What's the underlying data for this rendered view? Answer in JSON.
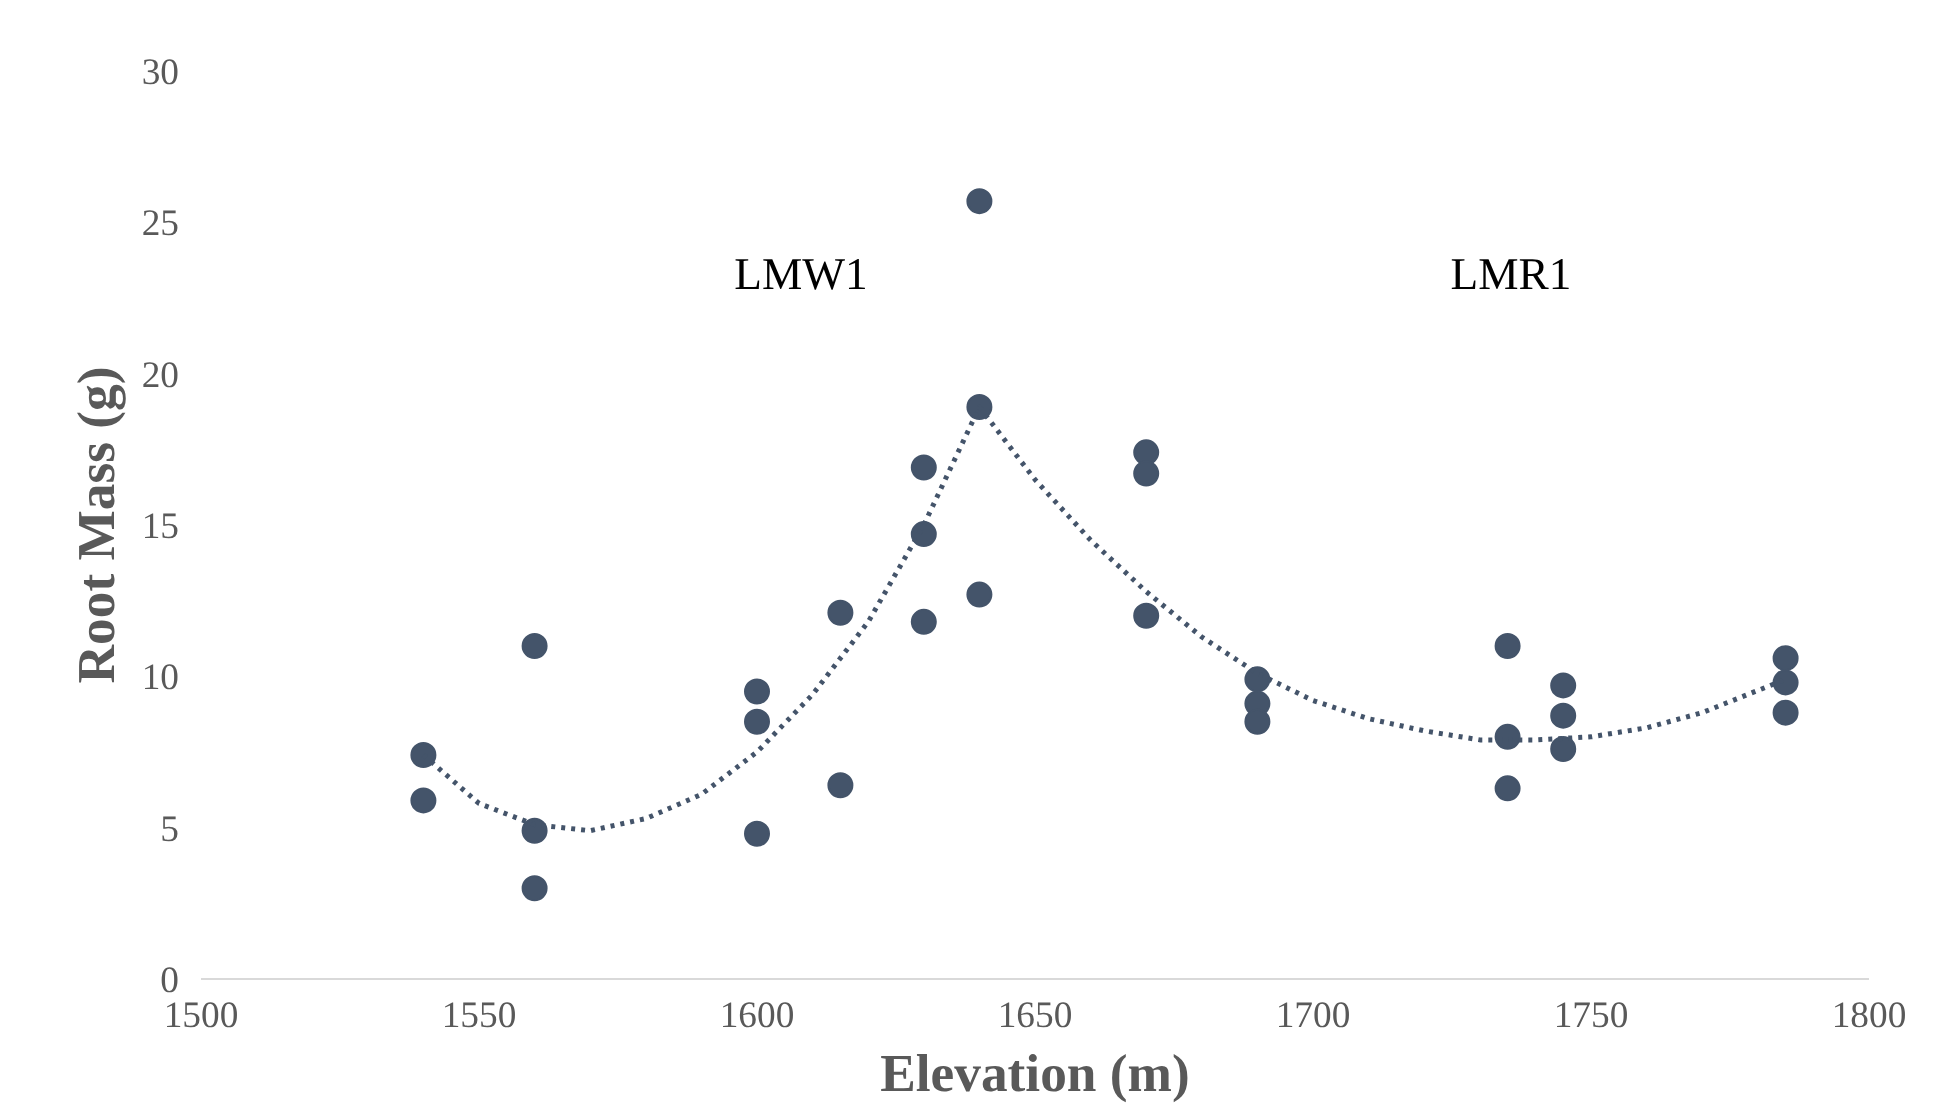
{
  "chart_data": {
    "type": "scatter",
    "xlabel": "Elevation (m)",
    "ylabel": "Root Mass (g)",
    "xlim": [
      1500,
      1800
    ],
    "xticks": [
      1500,
      1550,
      1600,
      1650,
      1700,
      1750,
      1800
    ],
    "ylim": [
      0,
      30
    ],
    "yticks": [
      0,
      5,
      10,
      15,
      20,
      25,
      30
    ],
    "grid": false,
    "marker": "circle",
    "series": [
      {
        "color": "#44546a",
        "x": [
          1540,
          1540,
          1560,
          1560,
          1560,
          1600,
          1600,
          1600,
          1615,
          1615,
          1630,
          1630,
          1630,
          1640,
          1640,
          1640,
          1670,
          1670,
          1670,
          1690,
          1690,
          1690,
          1735,
          1735,
          1735,
          1745,
          1745,
          1745,
          1785,
          1785,
          1785
        ],
        "values": [
          7.4,
          5.9,
          11.0,
          4.9,
          3.0,
          9.5,
          8.5,
          4.8,
          12.1,
          6.4,
          16.9,
          14.7,
          11.8,
          25.7,
          18.9,
          12.7,
          17.4,
          16.7,
          12.0,
          9.9,
          9.1,
          8.5,
          11.0,
          8.0,
          6.3,
          9.7,
          8.7,
          7.6,
          10.6,
          9.8,
          8.8
        ]
      },
      {
        "type": "line",
        "marker": "none",
        "color": "#44546a",
        "line_style": "dotted",
        "x": [
          1540,
          1550,
          1560,
          1570,
          1580,
          1590,
          1600,
          1610,
          1620,
          1630,
          1640,
          1650,
          1660,
          1670,
          1680,
          1690,
          1700,
          1710,
          1720,
          1730,
          1740,
          1750,
          1760,
          1770,
          1785
        ],
        "values": [
          7.4,
          5.8,
          5.1,
          4.9,
          5.3,
          6.1,
          7.5,
          9.4,
          11.8,
          15.0,
          18.9,
          16.5,
          14.5,
          12.8,
          11.3,
          10.1,
          9.2,
          8.6,
          8.2,
          7.9,
          7.9,
          8.0,
          8.3,
          8.8,
          9.9
        ]
      }
    ],
    "annotations": [
      "LMW1",
      "LMR1"
    ]
  }
}
